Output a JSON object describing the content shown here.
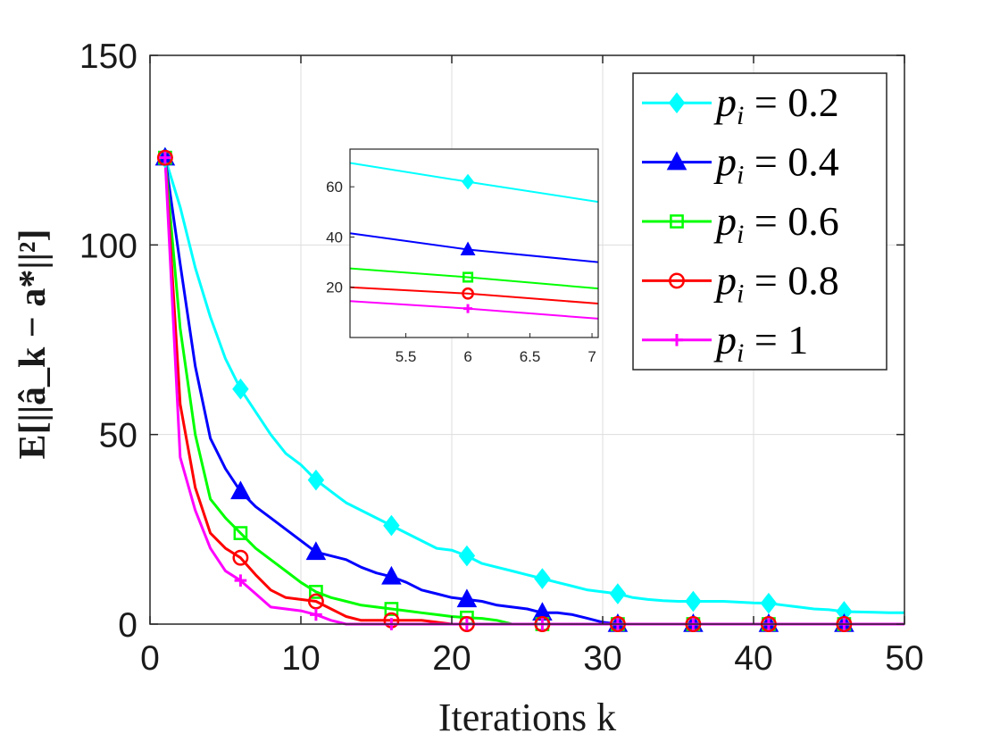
{
  "chart_data": {
    "type": "line",
    "title": "",
    "xlabel": "Iterations k",
    "ylabel": "E[||â_k − a*||²]",
    "xlim": [
      0,
      50
    ],
    "ylim": [
      0,
      150
    ],
    "xticks": [
      0,
      10,
      20,
      30,
      40,
      50
    ],
    "yticks": [
      0,
      50,
      100,
      150
    ],
    "xtick_labels": [
      "0",
      "10",
      "20",
      "30",
      "40",
      "50"
    ],
    "ytick_labels": [
      "0",
      "50",
      "100",
      "150"
    ],
    "grid": true,
    "legend_position": "top-right",
    "marker_x": [
      1,
      6,
      11,
      16,
      21,
      26,
      31,
      36,
      41,
      46
    ],
    "series": [
      {
        "name": "p_i = 0.2",
        "legend_label": "pi = 0.2",
        "color": "#00FFFF",
        "marker": "diamond",
        "x": [
          1,
          2,
          3,
          4,
          5,
          6,
          7,
          8,
          9,
          10,
          11,
          12,
          13,
          14,
          15,
          16,
          17,
          18,
          19,
          20,
          21,
          22,
          23,
          24,
          25,
          26,
          27,
          28,
          29,
          30,
          31,
          32,
          33,
          34,
          35,
          36,
          37,
          38,
          39,
          40,
          41,
          42,
          43,
          44,
          45,
          46,
          47,
          48,
          49,
          50
        ],
        "y": [
          123,
          110,
          94,
          81,
          70,
          62,
          56,
          50,
          45,
          42,
          38,
          35,
          32,
          30,
          28,
          26,
          24,
          22,
          20,
          19.5,
          18,
          16,
          15,
          14,
          13,
          12,
          11,
          10,
          9,
          8.5,
          8,
          7,
          6.5,
          6.2,
          6,
          6,
          6,
          6,
          5.8,
          5.6,
          5.5,
          5,
          4.5,
          4,
          3.8,
          3.3,
          3.2,
          3.1,
          3,
          3
        ]
      },
      {
        "name": "p_i = 0.4",
        "legend_label": "pi = 0.4",
        "color": "#0000FF",
        "marker": "triangle",
        "x": [
          1,
          2,
          3,
          4,
          5,
          6,
          7,
          8,
          9,
          10,
          11,
          12,
          13,
          14,
          15,
          16,
          17,
          18,
          19,
          20,
          21,
          22,
          23,
          24,
          25,
          26,
          27,
          28,
          29,
          30,
          31,
          32,
          33,
          34,
          35,
          36,
          37,
          38,
          39,
          40,
          41,
          42,
          43,
          44,
          45,
          46,
          47,
          48,
          49,
          50
        ],
        "y": [
          123,
          95,
          68,
          49,
          41,
          35,
          31,
          28,
          25,
          22,
          19,
          18,
          17,
          15,
          13.5,
          12.5,
          11,
          9,
          8,
          7,
          6.5,
          6,
          5,
          4.5,
          4,
          3,
          3,
          2.5,
          1.5,
          0.5,
          0,
          0,
          0,
          0,
          0,
          0,
          0,
          0,
          0,
          0,
          0,
          0,
          0,
          0,
          0,
          0,
          0,
          0,
          0,
          0
        ]
      },
      {
        "name": "p_i = 0.6",
        "legend_label": "pi = 0.6",
        "color": "#00FF00",
        "marker": "square",
        "x": [
          1,
          2,
          3,
          4,
          5,
          6,
          7,
          8,
          9,
          10,
          11,
          12,
          13,
          14,
          15,
          16,
          17,
          18,
          19,
          20,
          21,
          22,
          23,
          24,
          25,
          26,
          27,
          28,
          29,
          30,
          31,
          32,
          33,
          34,
          35,
          36,
          37,
          38,
          39,
          40,
          41,
          42,
          43,
          44,
          45,
          46,
          47,
          48,
          49,
          50
        ],
        "y": [
          123,
          78,
          50,
          33,
          28,
          24,
          20,
          17,
          14,
          11,
          8.5,
          7,
          6,
          5,
          4.5,
          4,
          3.5,
          3,
          2.5,
          2,
          1.7,
          1.5,
          1,
          0,
          0,
          0,
          0,
          0,
          0,
          0,
          0,
          0,
          0,
          0,
          0,
          0,
          0,
          0,
          0,
          0,
          0,
          0,
          0,
          0,
          0,
          0,
          0,
          0,
          0,
          0
        ]
      },
      {
        "name": "p_i = 0.8",
        "legend_label": "pi = 0.8",
        "color": "#FF0000",
        "marker": "circle",
        "x": [
          1,
          2,
          3,
          4,
          5,
          6,
          7,
          8,
          9,
          10,
          11,
          12,
          13,
          14,
          15,
          16,
          17,
          18,
          19,
          20,
          21,
          22,
          23,
          24,
          25,
          26,
          27,
          28,
          29,
          30,
          31,
          32,
          33,
          34,
          35,
          36,
          37,
          38,
          39,
          40,
          41,
          42,
          43,
          44,
          45,
          46,
          47,
          48,
          49,
          50
        ],
        "y": [
          123,
          58,
          36,
          24,
          20,
          17.5,
          13,
          9,
          7,
          6.5,
          6,
          4,
          2,
          1,
          1,
          1,
          1,
          1,
          0.5,
          0,
          0,
          0,
          0,
          0,
          0,
          0,
          0,
          0,
          0,
          0,
          0,
          0,
          0,
          0,
          0,
          0,
          0,
          0,
          0,
          0,
          0,
          0,
          0,
          0,
          0,
          0,
          0,
          0,
          0,
          0
        ]
      },
      {
        "name": "p_i = 1",
        "legend_label": "pi = 1",
        "color": "#FF00FF",
        "marker": "plus",
        "x": [
          1,
          2,
          3,
          4,
          5,
          6,
          7,
          8,
          9,
          10,
          11,
          12,
          13,
          14,
          15,
          16,
          17,
          18,
          19,
          20,
          21,
          22,
          23,
          24,
          25,
          26,
          27,
          28,
          29,
          30,
          31,
          32,
          33,
          34,
          35,
          36,
          37,
          38,
          39,
          40,
          41,
          42,
          43,
          44,
          45,
          46,
          47,
          48,
          49,
          50
        ],
        "y": [
          123,
          44,
          30,
          20,
          14,
          11.5,
          8,
          4.5,
          4,
          3.5,
          2.5,
          1,
          0,
          0,
          0,
          0,
          0,
          0,
          0,
          0,
          0,
          0,
          0,
          0,
          0,
          0,
          0,
          0,
          0,
          0,
          0,
          0,
          0,
          0,
          0,
          0,
          0,
          0,
          0,
          0,
          0,
          0,
          0,
          0,
          0,
          0,
          0,
          0,
          0,
          0
        ]
      }
    ],
    "inset": {
      "type": "line",
      "xlim": [
        5.05,
        7.05
      ],
      "ylim": [
        0,
        75
      ],
      "xticks": [
        5.5,
        6,
        6.5,
        7
      ],
      "xtick_labels": [
        "5.5",
        "6",
        "6.5",
        "7"
      ],
      "yticks": [
        20,
        40,
        60
      ],
      "ytick_labels": [
        "20",
        "40",
        "60"
      ],
      "marker_x": 6,
      "series": [
        {
          "name": "p_i = 0.2",
          "color": "#00FFFF",
          "marker": "diamond",
          "x": [
            5.05,
            6,
            7.05
          ],
          "y": [
            69.5,
            62,
            54
          ]
        },
        {
          "name": "p_i = 0.4",
          "color": "#0000FF",
          "marker": "triangle",
          "x": [
            5.05,
            6,
            7.05
          ],
          "y": [
            41.5,
            35,
            30
          ]
        },
        {
          "name": "p_i = 0.6",
          "color": "#00FF00",
          "marker": "square",
          "x": [
            5.05,
            6,
            7.05
          ],
          "y": [
            27.5,
            24,
            19.5
          ]
        },
        {
          "name": "p_i = 0.8",
          "color": "#FF0000",
          "marker": "circle",
          "x": [
            5.05,
            6,
            7.05
          ],
          "y": [
            20,
            17.5,
            13.5
          ]
        },
        {
          "name": "p_i = 1",
          "color": "#FF00FF",
          "marker": "plus",
          "x": [
            5.05,
            6,
            7.05
          ],
          "y": [
            14.5,
            11.5,
            7.5
          ]
        }
      ]
    }
  }
}
